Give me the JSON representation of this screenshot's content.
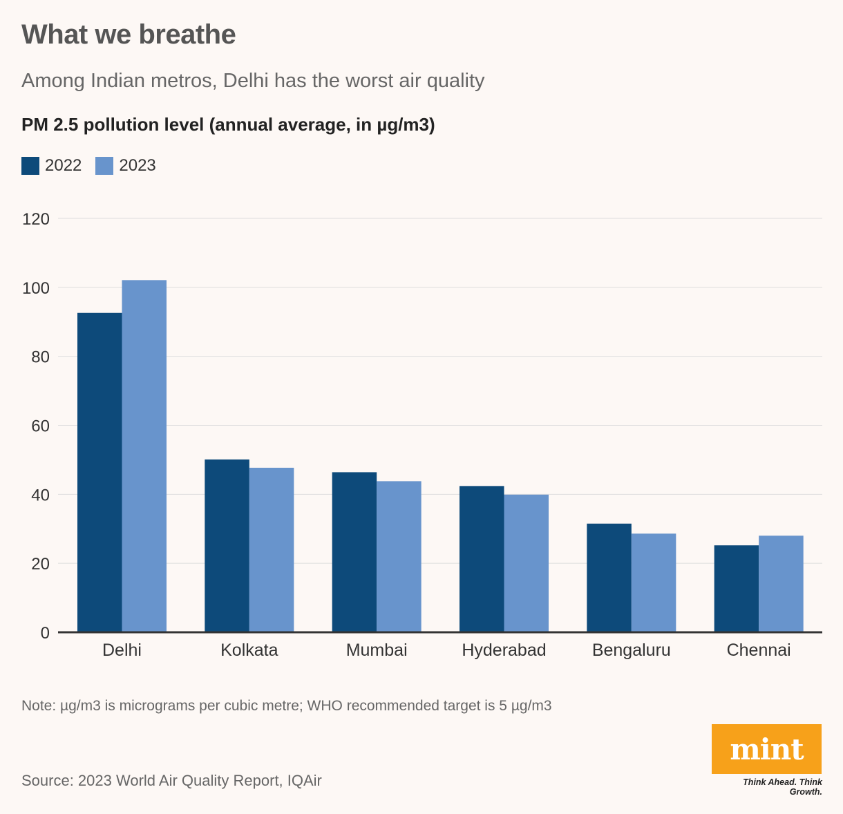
{
  "header": {
    "title": "What we breathe",
    "subtitle": "Among Indian metros, Delhi has the worst air quality"
  },
  "chart_data": {
    "type": "bar",
    "title": "PM 2.5 pollution level (annual average, in µg/m3)",
    "categories": [
      "Delhi",
      "Kolkata",
      "Mumbai",
      "Hyderabad",
      "Bengaluru",
      "Chennai"
    ],
    "series": [
      {
        "name": "2022",
        "color": "#0d4a7a",
        "values": [
          92.6,
          50.1,
          46.4,
          42.4,
          31.5,
          25.2
        ]
      },
      {
        "name": "2023",
        "color": "#6894cc",
        "values": [
          102.1,
          47.7,
          43.8,
          39.9,
          28.6,
          28.0
        ]
      }
    ],
    "yticks": [
      "0",
      "20",
      "40",
      "60",
      "80",
      "100",
      "120"
    ],
    "ylim": [
      0,
      120
    ],
    "xlabel": "",
    "ylabel": "",
    "grid": true,
    "legend": "top-left"
  },
  "footer": {
    "note": "Note: µg/m3 is micrograms per cubic metre; WHO recommended target is 5 µg/m3",
    "source": "Source: 2023 World Air Quality Report, IQAir",
    "logo_text": "mint",
    "tagline": "Think Ahead. Think Growth."
  }
}
